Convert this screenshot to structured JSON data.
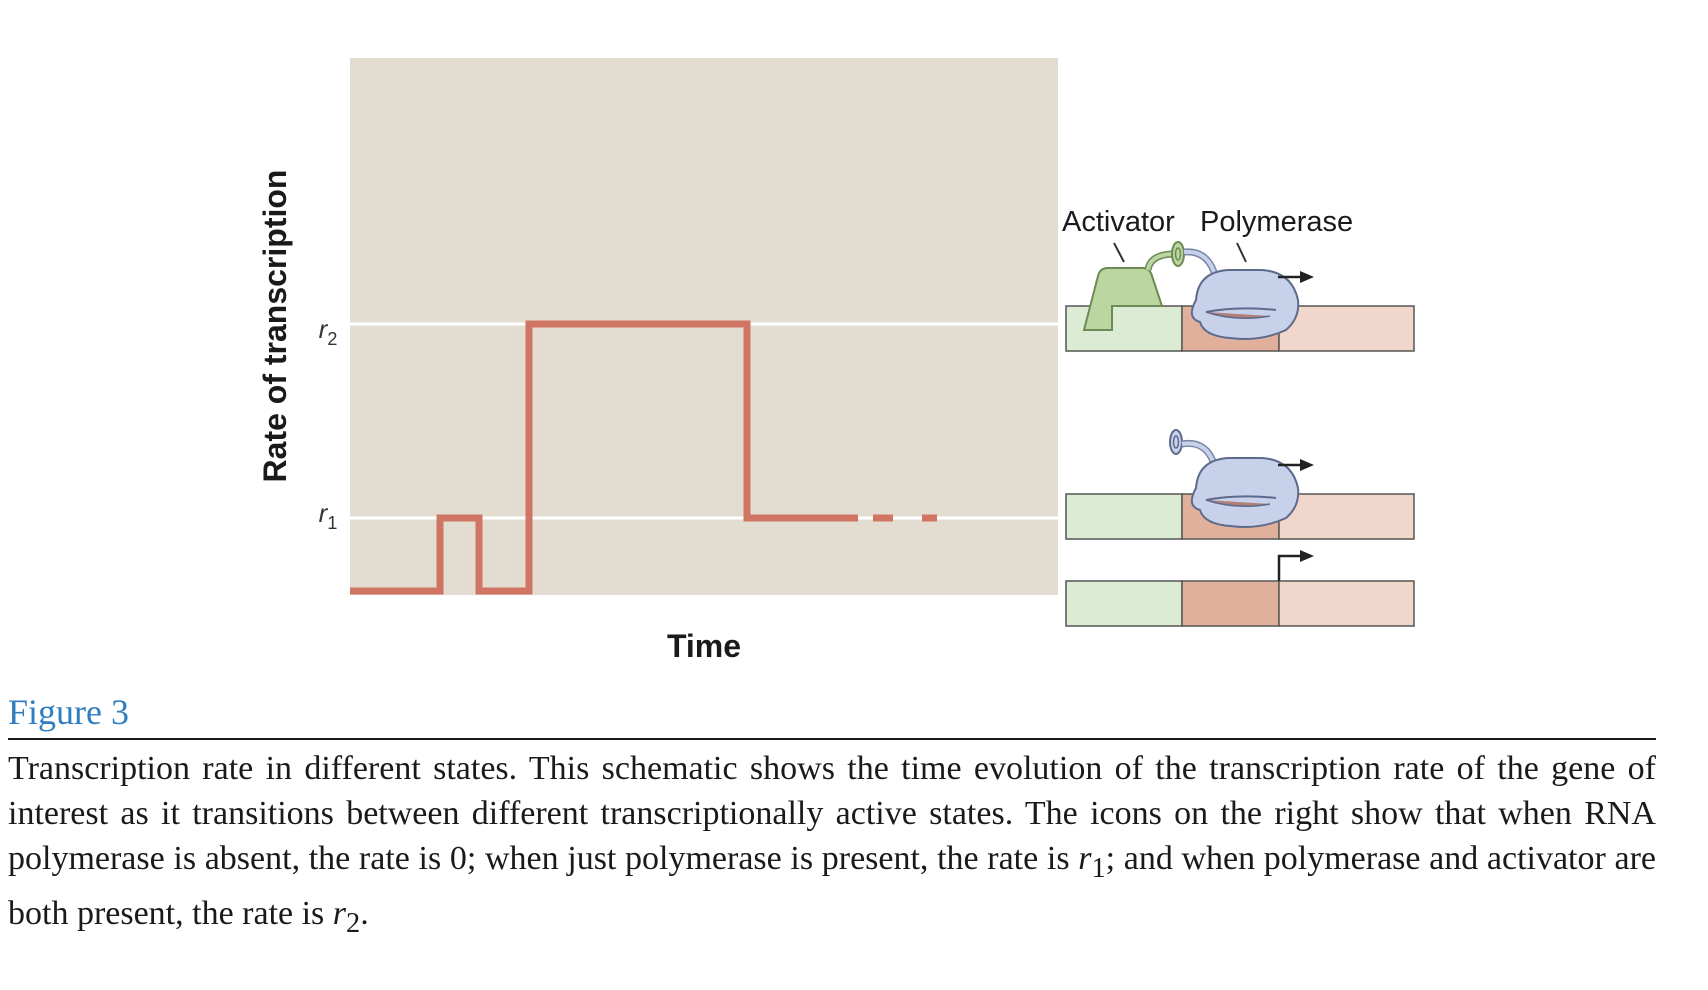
{
  "plot": {
    "y_axis_label": "Rate of transcription",
    "x_axis_label": "Time",
    "r2_label": "r",
    "r2_sub": "2",
    "r1_label": "r",
    "r1_sub": "1",
    "colors": {
      "panel": "#e3ddd1",
      "trace": "#d07563",
      "gridline": "#ffffff"
    }
  },
  "chart_data": {
    "type": "line",
    "title": "",
    "xlabel": "Time",
    "ylabel": "Rate of transcription",
    "y_levels": [
      "0",
      "r1",
      "r2"
    ],
    "segments": [
      {
        "state": "0",
        "level": 0
      },
      {
        "state": "r1",
        "level": 1
      },
      {
        "state": "0",
        "level": 0
      },
      {
        "state": "r2",
        "level": 2
      },
      {
        "state": "r1",
        "level": 1,
        "continues": true
      }
    ]
  },
  "schematic": {
    "activator_label": "Activator",
    "polymerase_label": "Polymerase",
    "colors": {
      "activator_region": "#dcebd3",
      "promoter_region": "#e0b09d",
      "gene_region": "#f0d6cb",
      "activator_protein": "#bcd6a2",
      "polymerase": "#c8d1ea",
      "outline": "#555555"
    }
  },
  "caption": {
    "figure_label": "Figure 3",
    "text_part1": "Transcription rate in different states. This schematic shows the time evolution of the transcription rate of the gene of interest as it transitions between different transcriptionally active states. The icons on the right show that when RNA polymerase is absent, the rate is 0; when just polymerase is present, the rate is ",
    "r1_var": "r",
    "r1_sub": "1",
    "text_part2": "; and when polymerase and activator are both present, the rate is ",
    "r2_var": "r",
    "r2_sub": "2",
    "text_part3": "."
  }
}
